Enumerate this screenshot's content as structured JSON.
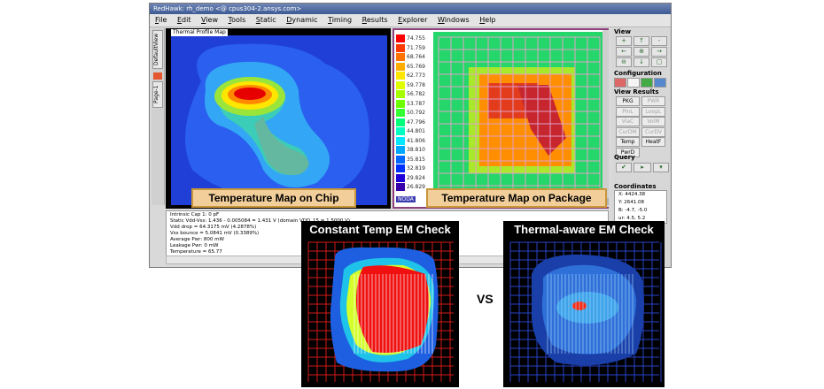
{
  "window": {
    "title": "RedHawk: rh_demo  <@ cpus304-2.ansys.com>",
    "menu": [
      "File",
      "Edit",
      "View",
      "Tools",
      "Static",
      "Dynamic",
      "Timing",
      "Results",
      "Explorer",
      "Windows",
      "Help"
    ]
  },
  "side_tabs": [
    "DefaultView",
    "Page-1"
  ],
  "chip_panel": {
    "label": "Thermal Profile Map"
  },
  "package_panel": {
    "legend": [
      "74.755",
      "71.759",
      "68.764",
      "65.769",
      "62.773",
      "59.778",
      "56.782",
      "53.787",
      "50.792",
      "47.796",
      "44.801",
      "41.806",
      "38.810",
      "35.815",
      "32.819",
      "29.824",
      "26.829"
    ],
    "legend_colors": [
      "#ff0000",
      "#ff3a00",
      "#ff7300",
      "#ffad00",
      "#ffe600",
      "#e0ff00",
      "#a6ff00",
      "#6dff00",
      "#33ff33",
      "#00ff7a",
      "#00ffc0",
      "#00e8ff",
      "#00a9ff",
      "#0068ff",
      "#0030ff",
      "#2000d8",
      "#3800a8"
    ],
    "footer": "NODA"
  },
  "controls": {
    "view_label": "View",
    "view_buttons": [
      "+",
      "↑",
      "-",
      "←",
      "⊕",
      "→",
      "⊖",
      "↓",
      "▢"
    ],
    "configuration_label": "Configuration",
    "view_results_label": "View Results",
    "results": [
      {
        "label": "PKG",
        "enabled": true
      },
      {
        "label": "PWR",
        "enabled": false
      },
      {
        "label": "PInL",
        "enabled": false
      },
      {
        "label": "LoopL",
        "enabled": false
      },
      {
        "label": "ViaC",
        "enabled": false
      },
      {
        "label": "VolM",
        "enabled": false
      },
      {
        "label": "CurDM",
        "enabled": false
      },
      {
        "label": "CurDV",
        "enabled": false
      },
      {
        "label": "Temp",
        "enabled": true
      },
      {
        "label": "HeatF",
        "enabled": true
      },
      {
        "label": "PwrD",
        "enabled": true
      }
    ],
    "query_label": "Query",
    "coordinates_label": "Coordinates",
    "coords": [
      "X:  4424.38",
      "Y:  2641.08",
      "B:  -4.7, -5.0",
      "ur:  4.5, 5.2"
    ]
  },
  "info_lines": [
    "Intrinsic Cap 1:        0 pF",
    "Static Vdd-Vss:  1.436 - 0.005084 =  1.431 V (domain VDD_15 = 1.5000 V)",
    "Vdd drop = 64.3175 mV (4.2878%)",
    "Vss bounce = 5.0841 mV (0.3389%)",
    "Average Pwr:      800 mW",
    "Leakage Pwr:        0 mW",
    "Temperature = 65.77"
  ],
  "captions": {
    "chip": "Temperature Map on Chip",
    "package": "Temperature Map on Package"
  },
  "em": {
    "left_title": "Constant Temp EM Check",
    "right_title": "Thermal-aware EM Check",
    "vs": "VS"
  },
  "colors": {
    "titlebar": "#3d5a95",
    "caption_fill": "#f2cf9a",
    "caption_border": "#c9963a",
    "package_border": "#8b3f7c"
  }
}
